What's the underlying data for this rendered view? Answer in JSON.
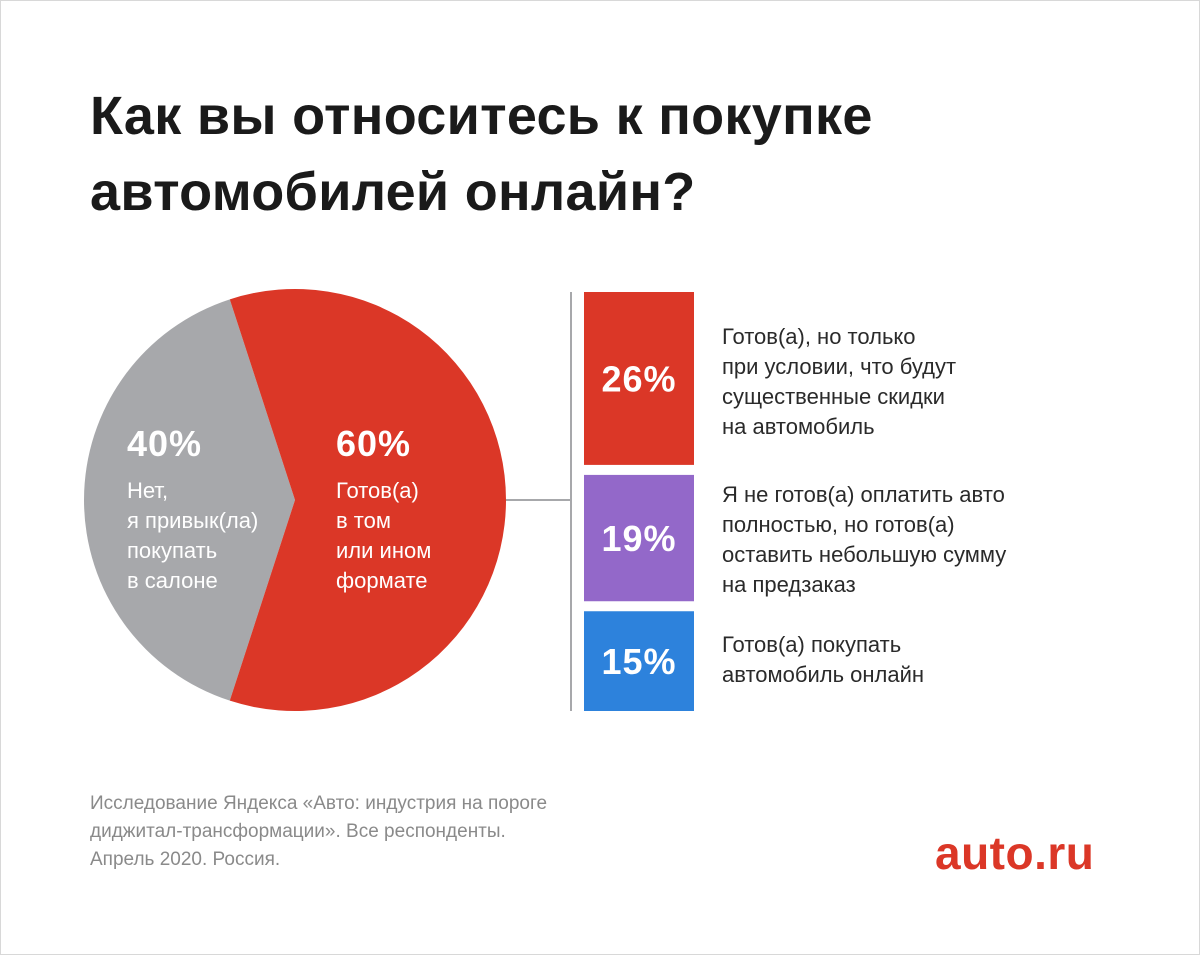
{
  "title": [
    "Как вы относитесь к покупке",
    "автомобилей онлайн?"
  ],
  "chart_data": [
    {
      "type": "pie",
      "slices": [
        {
          "label_lines": [
            "Готов(а)",
            "в том",
            "или ином",
            "формате"
          ],
          "value": 60,
          "value_label": "60%",
          "color": "#db3727"
        },
        {
          "label_lines": [
            "Нет,",
            "я привык(ла)",
            "покупать",
            "в салоне"
          ],
          "value": 40,
          "value_label": "40%",
          "color": "#a7a8ab"
        }
      ]
    },
    {
      "type": "bar",
      "orientation": "stacked-vertical",
      "breakdown_of": "60%",
      "categories": [
        [
          "Готов(а), но только",
          "при условии, что будут",
          "существенные скидки",
          "на автомобиль"
        ],
        [
          "Я не готов(а) оплатить авто",
          "полностью, но готов(а)",
          "оставить небольшую сумму",
          "на предзаказ"
        ],
        [
          "Готов(а) покупать",
          "автомобиль онлайн"
        ]
      ],
      "values": [
        26,
        19,
        15
      ],
      "value_labels": [
        "26%",
        "19%",
        "15%"
      ],
      "colors": [
        "#db3727",
        "#9368c9",
        "#2d82dc"
      ]
    }
  ],
  "source": [
    "Исследование Яндекса «Авто: индустрия на пороге",
    "диджитал-трансформации». Все респонденты.",
    "Апрель 2020. Россия."
  ],
  "logo_text": "auto.ru"
}
